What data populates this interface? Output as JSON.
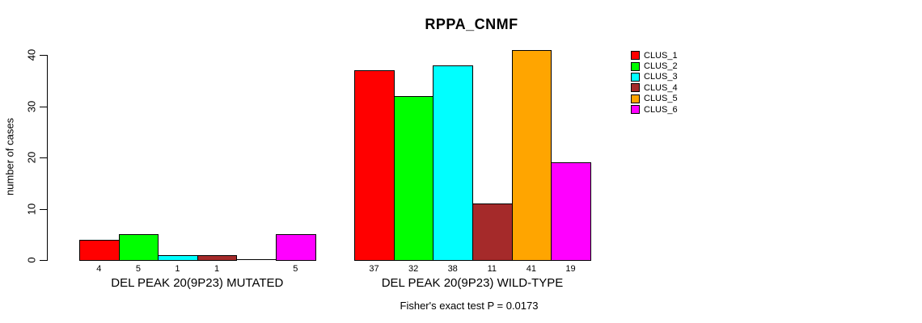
{
  "chart_data": {
    "type": "bar",
    "title": "RPPA_CNMF",
    "ylabel": "number of cases",
    "xlabel": "",
    "ylim": [
      0,
      40
    ],
    "yticks": [
      0,
      10,
      20,
      30,
      40
    ],
    "grid": false,
    "legend_position": "right",
    "annotation": "Fisher's exact test P = 0.0173",
    "series": [
      {
        "name": "CLUS_1",
        "color": "#FF0000"
      },
      {
        "name": "CLUS_2",
        "color": "#00FF00"
      },
      {
        "name": "CLUS_3",
        "color": "#00FFFF"
      },
      {
        "name": "CLUS_4",
        "color": "#A52A2A"
      },
      {
        "name": "CLUS_5",
        "color": "#FFA500"
      },
      {
        "name": "CLUS_6",
        "color": "#FF00FF"
      }
    ],
    "groups": [
      {
        "label": "DEL PEAK 20(9P23) MUTATED",
        "values": [
          4,
          5,
          1,
          1,
          0,
          5
        ],
        "bar_labels": [
          "4",
          "5",
          "1",
          "1",
          "",
          "5"
        ]
      },
      {
        "label": "DEL PEAK 20(9P23) WILD-TYPE",
        "values": [
          37,
          32,
          38,
          11,
          41,
          19
        ],
        "bar_labels": [
          "37",
          "32",
          "38",
          "11",
          "41",
          "19"
        ]
      }
    ]
  }
}
